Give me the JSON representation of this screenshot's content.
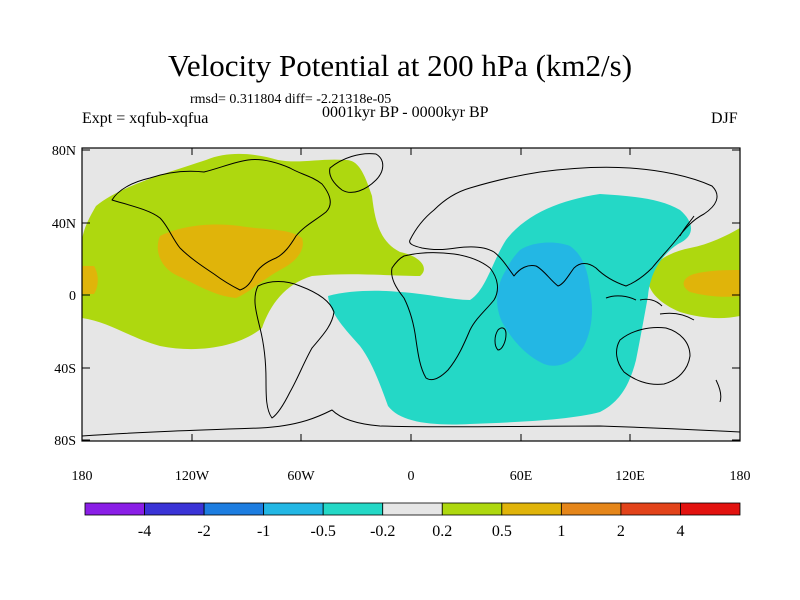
{
  "title": "Velocity Potential at 200 hPa (km2/s)",
  "stats": "rmsd= 0.311804 diff= -2.21318e-05",
  "expt": "Expt = xqfub-xqfua",
  "period": "0001kyr BP - 0000kyr BP",
  "season": "DJF",
  "lat_ticks": [
    "80N",
    "40N",
    "0",
    "40S",
    "80S"
  ],
  "lon_ticks": [
    "180",
    "120W",
    "60W",
    "0",
    "60E",
    "120E",
    "180"
  ],
  "colorbar": {
    "labels": [
      "-4",
      "-2",
      "-1",
      "-0.5",
      "-0.2",
      "0.2",
      "0.5",
      "1",
      "2",
      "4"
    ],
    "colors": [
      "#8a1ee6",
      "#3a33d6",
      "#1d7de0",
      "#23b7e4",
      "#24d8c6",
      "#e6e6e6",
      "#aed80f",
      "#e0b40a",
      "#e5861a",
      "#e2431a",
      "#e2120f"
    ]
  },
  "shading_colors": {
    "background": "#e6e6e6",
    "ocean_neg_small": "#24d8c6",
    "ocean_neg_mid": "#23b7e4",
    "pos_small": "#aed80f",
    "pos_mid": "#e0b40a"
  }
}
